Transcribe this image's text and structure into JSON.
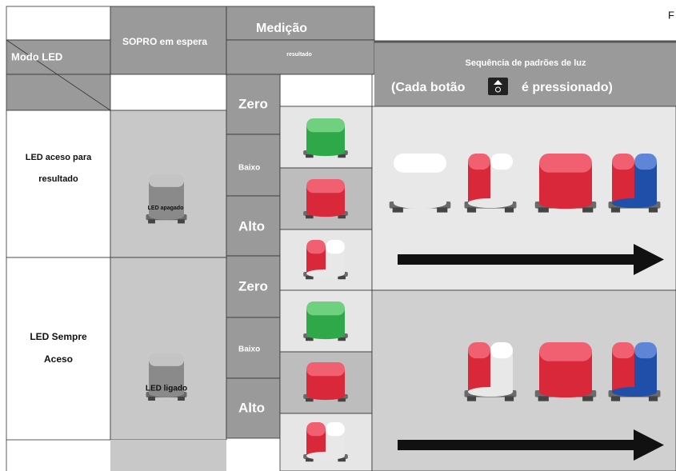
{
  "header": {
    "mode_label": "Modo LED",
    "standby": "SOPRO em espera",
    "measurement": "Medição",
    "result": "resultado",
    "cut_text": "F",
    "sequence_title": "Sequência de padrões de luz",
    "press_before": "(Cada botão",
    "press_after": "é pressionado)"
  },
  "rows": [
    {
      "mode_lines": [
        "LED aceso para",
        "resultado"
      ],
      "standby_label": "LED apagado",
      "levels": [
        "Zero",
        "Baixo",
        "Alto"
      ]
    },
    {
      "mode_lines": [
        "LED Sempre",
        "Aceso"
      ],
      "standby_label": "LED ligado",
      "levels": [
        "Zero",
        "Baixo",
        "Alto"
      ]
    }
  ]
}
